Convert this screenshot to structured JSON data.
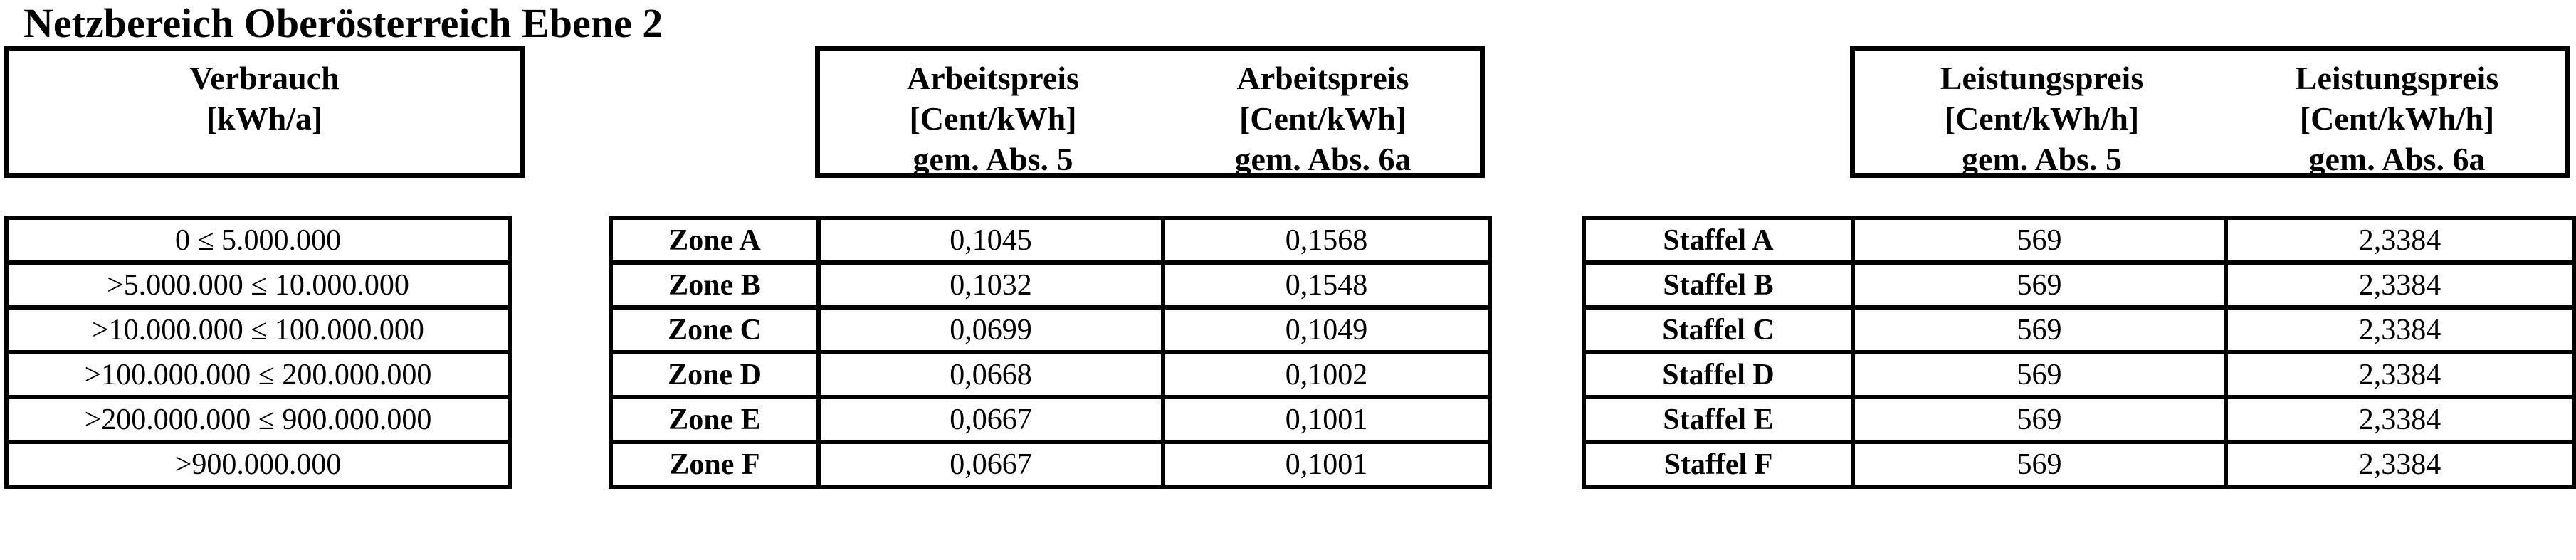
{
  "title": "Netzbereich Oberösterreich Ebene 2",
  "colors": {
    "text": "#000000",
    "background": "#ffffff",
    "border": "#000000"
  },
  "consumption": {
    "header": {
      "line1": "Verbrauch",
      "line2": "[kWh/a]"
    },
    "rows": [
      "0 ≤ 5.000.000",
      ">5.000.000 ≤ 10.000.000",
      ">10.000.000 ≤ 100.000.000",
      ">100.000.000 ≤ 200.000.000",
      ">200.000.000 ≤ 900.000.000",
      ">900.000.000"
    ]
  },
  "arbeitspreis": {
    "abs5_header": {
      "line1": "Arbeitspreis",
      "line2": "[Cent/kWh]",
      "line3": "gem. Abs. 5"
    },
    "abs6a_header": {
      "line1": "Arbeitspreis",
      "line2": "[Cent/kWh]",
      "line3": "gem. Abs. 6a"
    },
    "rows": [
      {
        "zone": "Zone A",
        "abs5": "0,1045",
        "abs6a": "0,1568"
      },
      {
        "zone": "Zone B",
        "abs5": "0,1032",
        "abs6a": "0,1548"
      },
      {
        "zone": "Zone C",
        "abs5": "0,0699",
        "abs6a": "0,1049"
      },
      {
        "zone": "Zone D",
        "abs5": "0,0668",
        "abs6a": "0,1002"
      },
      {
        "zone": "Zone E",
        "abs5": "0,0667",
        "abs6a": "0,1001"
      },
      {
        "zone": "Zone F",
        "abs5": "0,0667",
        "abs6a": "0,1001"
      }
    ]
  },
  "leistungspreis": {
    "abs5_header": {
      "line1": "Leistungspreis",
      "line2": "[Cent/kWh/h]",
      "line3": "gem. Abs. 5"
    },
    "abs6a_header": {
      "line1": "Leistungspreis",
      "line2": "[Cent/kWh/h]",
      "line3": "gem. Abs. 6a"
    },
    "rows": [
      {
        "staffel": "Staffel A",
        "abs5": "569",
        "abs6a": "2,3384"
      },
      {
        "staffel": "Staffel B",
        "abs5": "569",
        "abs6a": "2,3384"
      },
      {
        "staffel": "Staffel C",
        "abs5": "569",
        "abs6a": "2,3384"
      },
      {
        "staffel": "Staffel D",
        "abs5": "569",
        "abs6a": "2,3384"
      },
      {
        "staffel": "Staffel E",
        "abs5": "569",
        "abs6a": "2,3384"
      },
      {
        "staffel": "Staffel F",
        "abs5": "569",
        "abs6a": "2,3384"
      }
    ]
  }
}
